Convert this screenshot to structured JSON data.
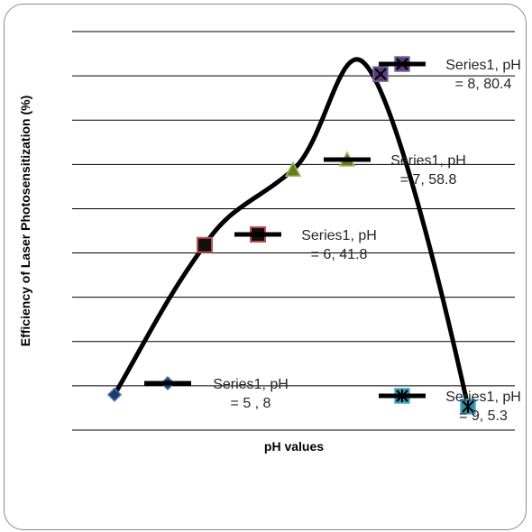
{
  "chart_data": {
    "type": "line",
    "title": "",
    "xlabel": "pH values",
    "ylabel": "Efficiency of Laser Photosensitization (%)",
    "x": [
      5,
      6,
      7,
      8,
      9
    ],
    "series": [
      {
        "name": "Series1",
        "values": [
          8,
          41.8,
          58.8,
          80.4,
          5.3
        ]
      }
    ],
    "ylim": [
      0,
      90
    ],
    "grid": true,
    "legend": "right",
    "data_labels": [
      [
        "Series1, pH",
        "= 5 , 8"
      ],
      [
        "Series1, pH",
        "= 6, 41.8"
      ],
      [
        "Series1, pH",
        "= 7, 58.8"
      ],
      [
        "Series1, pH",
        "= 8, 80.4"
      ],
      [
        "Series1, pH",
        "= 9, 5.3"
      ]
    ],
    "markers": [
      "diamond",
      "square",
      "triangle",
      "x",
      "star"
    ],
    "colors": {
      "line": "#000000",
      "marker_fills": [
        "#1f3864",
        "#111111",
        "#6b7a1e",
        "#5b3e7a",
        "#2e8fa8"
      ],
      "marker_strokes": [
        "#4472c4",
        "#c0504d",
        "#9bbb59",
        "#8064a2",
        "#4bacc6"
      ]
    }
  }
}
